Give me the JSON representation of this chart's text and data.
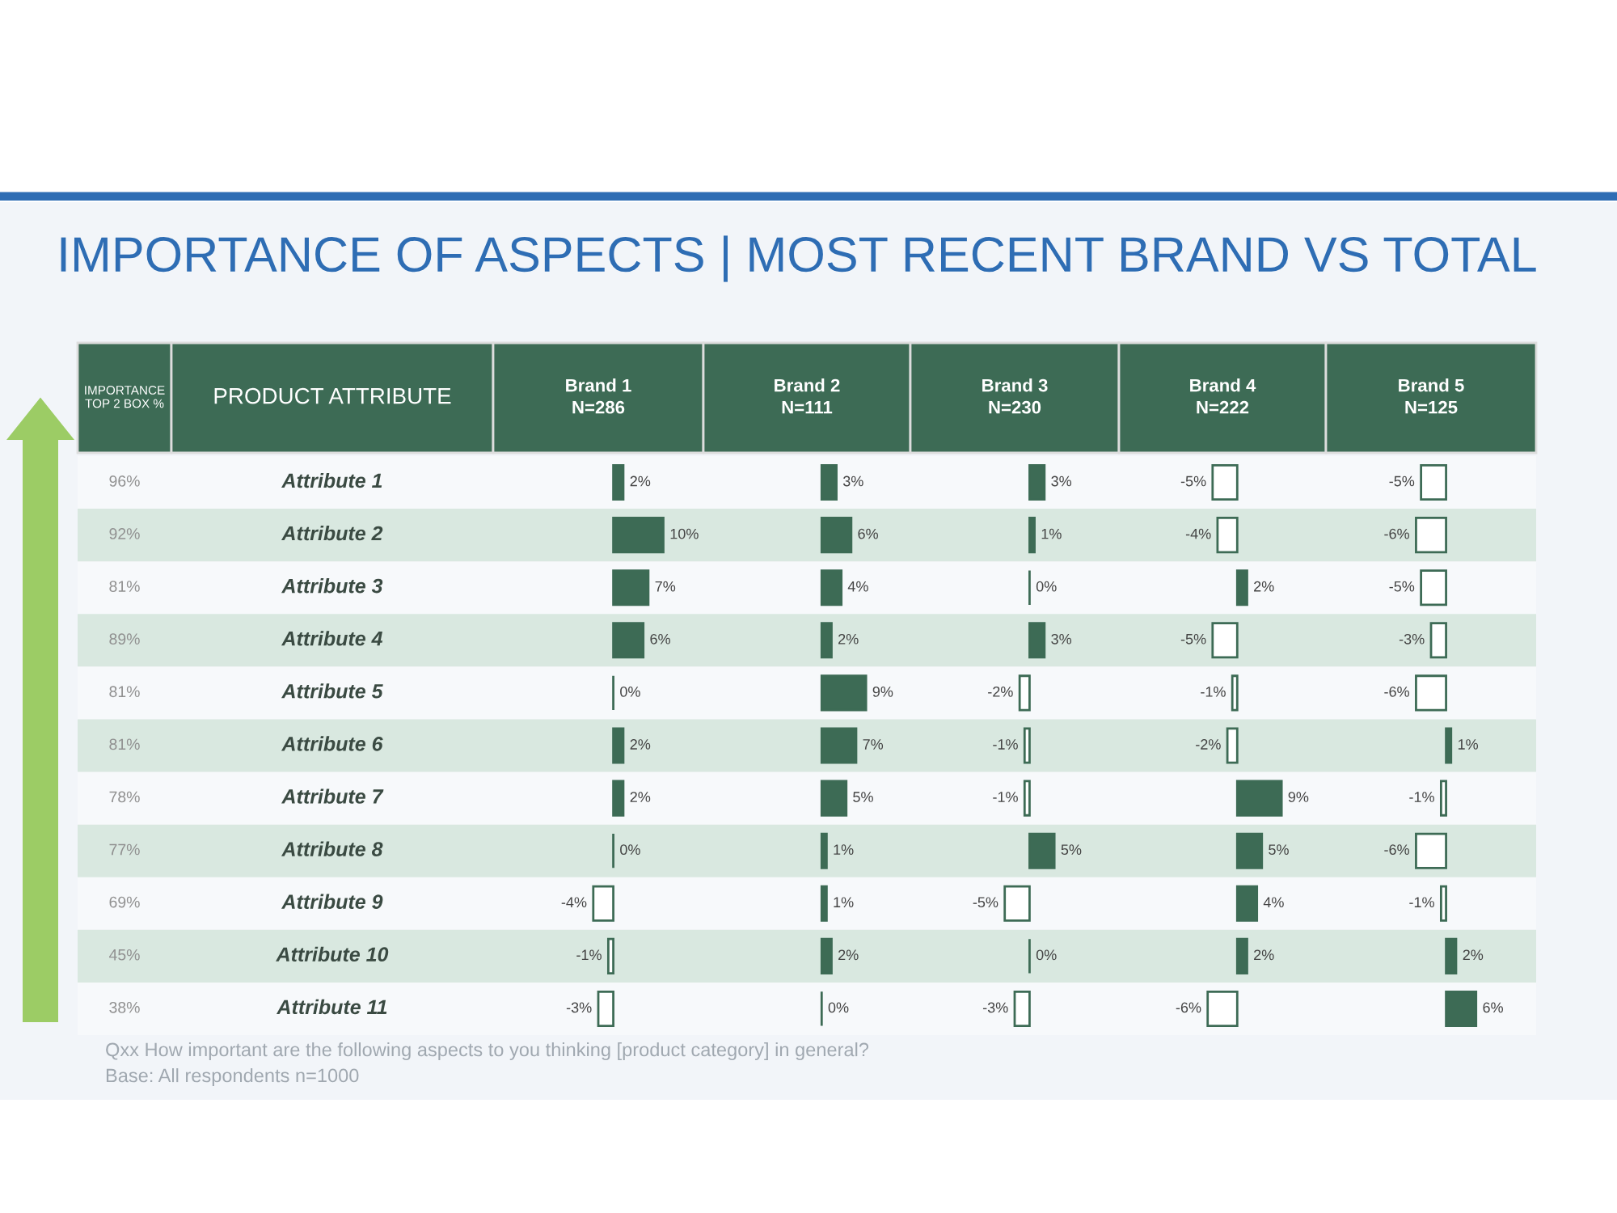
{
  "chart_data": [
    {
      "type": "other",
      "title": "IMPORTANCE OF ASPECTS | MOST RECENT BRAND VS TOTAL",
      "annotations": [
        "Qxx How important are the following aspects to you thinking [product category] in general?",
        "Base: All respondents n=1000"
      ]
    },
    {
      "type": "other",
      "title": "IMPORTANCE\nTOP 2 BOX %",
      "annotations": [
        "96%",
        "92%",
        "81%",
        "89%",
        "81%",
        "81%",
        "78%",
        "77%",
        "69%",
        "45%",
        "38%"
      ]
    },
    {
      "type": "bar",
      "orientation": "horizontal",
      "title": "Brand 1\nN=286",
      "ylabel": "PRODUCT ATTRIBUTE",
      "tick_labels": "y",
      "categories": [
        "Attribute 1",
        "Attribute 2",
        "Attribute 3",
        "Attribute 4",
        "Attribute 5",
        "Attribute 6",
        "Attribute 7",
        "Attribute 8",
        "Attribute 9",
        "Attribute 10",
        "Attribute 11"
      ],
      "color": "#3d6b55",
      "values": [
        2,
        10,
        7,
        6,
        0,
        2,
        2,
        0,
        -4,
        -1,
        -3
      ],
      "colors": [
        "#3d6b55",
        "#3d6b55",
        "#3d6b55",
        "#3d6b55",
        "#3d6b55",
        "#3d6b55",
        "#3d6b55",
        "#3d6b55",
        "#ffffff",
        "#ffffff",
        "#ffffff"
      ],
      "value_labels": [
        "2%",
        "10%",
        "7%",
        "6%",
        "0%",
        "2%",
        "2%",
        "0%",
        "-4%",
        "-1%",
        "-3%"
      ]
    },
    {
      "type": "bar",
      "orientation": "horizontal",
      "title": "Brand 2\nN=111",
      "tick_labels": false,
      "categories": [
        null,
        null,
        null,
        null,
        null,
        null,
        null,
        null,
        null,
        null,
        null
      ],
      "color": "#3d6b55",
      "values": [
        3,
        6,
        4,
        2,
        9,
        7,
        5,
        1,
        1,
        2,
        0
      ],
      "colors": [
        "#3d6b55",
        "#3d6b55",
        "#3d6b55",
        "#3d6b55",
        "#3d6b55",
        "#3d6b55",
        "#3d6b55",
        "#3d6b55",
        "#3d6b55",
        "#3d6b55",
        "#3d6b55"
      ],
      "value_labels": [
        "3%",
        "6%",
        "4%",
        "2%",
        "9%",
        "7%",
        "5%",
        "1%",
        "1%",
        "2%",
        "0%"
      ]
    },
    {
      "type": "bar",
      "orientation": "horizontal",
      "title": "Brand 3\nN=230",
      "tick_labels": false,
      "categories": [
        null,
        null,
        null,
        null,
        null,
        null,
        null,
        null,
        null,
        null,
        null
      ],
      "color": "#3d6b55",
      "values": [
        3,
        1,
        0,
        3,
        -2,
        -1,
        -1,
        5,
        -5,
        0,
        -3
      ],
      "colors": [
        "#3d6b55",
        "#3d6b55",
        "#3d6b55",
        "#3d6b55",
        "#ffffff",
        "#ffffff",
        "#ffffff",
        "#3d6b55",
        "#ffffff",
        "#3d6b55",
        "#ffffff"
      ],
      "value_labels": [
        "3%",
        "1%",
        "0%",
        "3%",
        "-2%",
        "-1%",
        "-1%",
        "5%",
        "-5%",
        "0%",
        "-3%"
      ]
    },
    {
      "type": "bar",
      "orientation": "horizontal",
      "title": "Brand 4\nN=222",
      "tick_labels": false,
      "categories": [
        null,
        null,
        null,
        null,
        null,
        null,
        null,
        null,
        null,
        null,
        null
      ],
      "color": "#3d6b55",
      "values": [
        -5,
        -4,
        2,
        -5,
        -1,
        -2,
        9,
        5,
        4,
        2,
        -6
      ],
      "colors": [
        "#ffffff",
        "#ffffff",
        "#3d6b55",
        "#ffffff",
        "#ffffff",
        "#ffffff",
        "#3d6b55",
        "#3d6b55",
        "#3d6b55",
        "#3d6b55",
        "#ffffff"
      ],
      "value_labels": [
        "-5%",
        "-4%",
        "2%",
        "-5%",
        "-1%",
        "-2%",
        "9%",
        "5%",
        "4%",
        "2%",
        "-6%"
      ]
    },
    {
      "type": "bar",
      "orientation": "horizontal",
      "title": "Brand 5\nN=125",
      "tick_labels": false,
      "categories": [
        null,
        null,
        null,
        null,
        null,
        null,
        null,
        null,
        null,
        null,
        null
      ],
      "color": "#3d6b55",
      "values": [
        -5,
        -6,
        -5,
        -3,
        -6,
        1,
        -1,
        -6,
        -1,
        2,
        6
      ],
      "colors": [
        "#ffffff",
        "#ffffff",
        "#ffffff",
        "#ffffff",
        "#ffffff",
        "#3d6b55",
        "#ffffff",
        "#ffffff",
        "#ffffff",
        "#3d6b55",
        "#3d6b55"
      ],
      "value_labels": [
        "-5%",
        "-6%",
        "-5%",
        "-3%",
        "-6%",
        "1%",
        "-1%",
        "-6%",
        "-1%",
        "2%",
        "6%"
      ]
    }
  ]
}
